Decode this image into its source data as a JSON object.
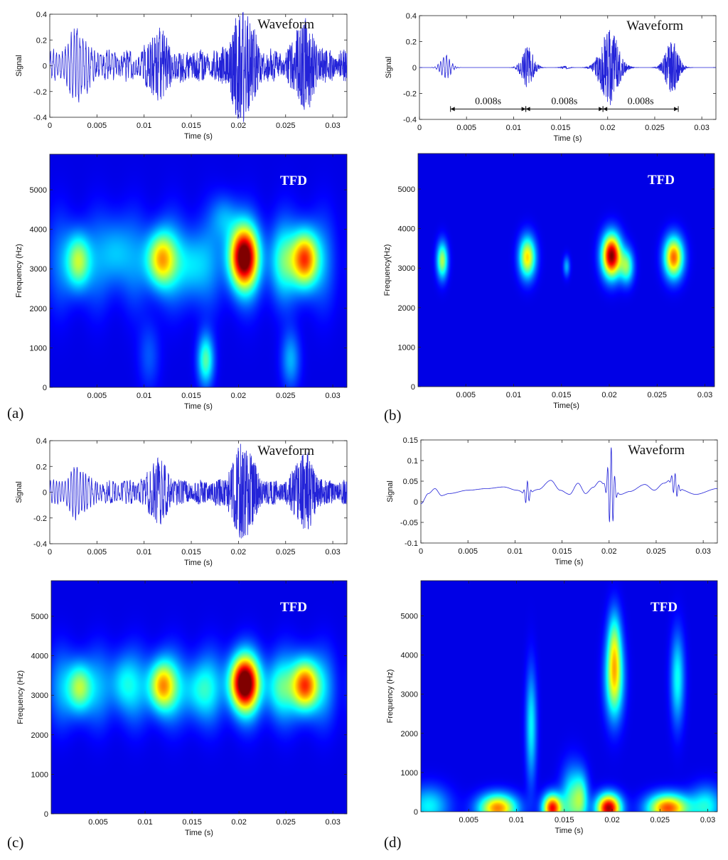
{
  "chart_data": [
    {
      "id": "a-waveform",
      "type": "line",
      "panel": "a",
      "title": "Waveform",
      "xlabel": "Time (s)",
      "ylabel": "Signal",
      "xlim": [
        0,
        0.0315
      ],
      "ylim": [
        -0.4,
        0.4
      ],
      "xticks": [
        0,
        0.005,
        0.01,
        0.015,
        0.02,
        0.025,
        0.03
      ],
      "xtick_labels": [
        "0",
        "0.005",
        "0.01",
        "0.015",
        "0.02",
        "0.025",
        "0.03"
      ],
      "yticks": [
        -0.4,
        -0.2,
        0,
        0.2,
        0.4
      ],
      "ytick_labels": [
        "-0.4",
        "-0.2",
        "0",
        "0.2",
        "0.4"
      ],
      "color": "#2323d8",
      "signal": {
        "kind": "noisy",
        "carrier_hz": 3200,
        "base": 0.08,
        "noise": 0.05,
        "bursts": [
          {
            "t": 0.003,
            "a": 0.18,
            "w": 0.0012
          },
          {
            "t": 0.0115,
            "a": 0.17,
            "w": 0.0012
          },
          {
            "t": 0.0205,
            "a": 0.32,
            "w": 0.0014
          },
          {
            "t": 0.027,
            "a": 0.26,
            "w": 0.0012
          }
        ]
      }
    },
    {
      "id": "a-tfd",
      "type": "heatmap",
      "panel": "a",
      "title": "TFD",
      "xlabel": "Time (s)",
      "ylabel": "Frequency (Hz)",
      "xlim": [
        0,
        0.0315
      ],
      "ylim": [
        0,
        5900
      ],
      "xticks": [
        0.005,
        0.01,
        0.015,
        0.02,
        0.025,
        0.03
      ],
      "xtick_labels": [
        "0.005",
        "0.01",
        "0.015",
        "0.02",
        "0.025",
        "0.03"
      ],
      "yticks": [
        0,
        1000,
        2000,
        3000,
        4000,
        5000
      ],
      "ytick_labels": [
        "0",
        "1000",
        "2000",
        "3000",
        "4000",
        "5000"
      ],
      "colormap": "jet",
      "blobs": [
        {
          "t": 0.003,
          "f": 3200,
          "st": 0.0009,
          "sf": 500,
          "v": 0.5
        },
        {
          "t": 0.0117,
          "f": 3250,
          "st": 0.0011,
          "sf": 500,
          "v": 0.62
        },
        {
          "t": 0.0205,
          "f": 3300,
          "st": 0.0011,
          "sf": 550,
          "v": 1.0
        },
        {
          "t": 0.027,
          "f": 3250,
          "st": 0.001,
          "sf": 500,
          "v": 0.78
        },
        {
          "t": 0.0165,
          "f": 700,
          "st": 0.0006,
          "sf": 450,
          "v": 0.4
        },
        {
          "t": 0.007,
          "f": 3400,
          "st": 0.0011,
          "sf": 600,
          "v": 0.22
        },
        {
          "t": 0.015,
          "f": 3100,
          "st": 0.0012,
          "sf": 600,
          "v": 0.25
        },
        {
          "t": 0.0245,
          "f": 3200,
          "st": 0.001,
          "sf": 600,
          "v": 0.24
        },
        {
          "t": 0.0185,
          "f": 4300,
          "st": 0.001,
          "sf": 400,
          "v": 0.18
        },
        {
          "t": 0.0255,
          "f": 700,
          "st": 0.0007,
          "sf": 500,
          "v": 0.22
        },
        {
          "t": 0.0105,
          "f": 800,
          "st": 0.0008,
          "sf": 600,
          "v": 0.12
        }
      ],
      "background": 0.1,
      "band": {
        "f": 3200,
        "sf": 900,
        "v": 0.15
      }
    },
    {
      "id": "b-waveform",
      "type": "line",
      "panel": "b",
      "title": "Waveform",
      "xlabel": "Time (s)",
      "ylabel": "Signal",
      "xlim": [
        0,
        0.0315
      ],
      "ylim": [
        -0.4,
        0.4
      ],
      "xticks": [
        0,
        0.005,
        0.01,
        0.015,
        0.02,
        0.025,
        0.03
      ],
      "xtick_labels": [
        "0",
        "0.005",
        "0.01",
        "0.015",
        "0.02",
        "0.025",
        "0.03"
      ],
      "yticks": [
        -0.4,
        -0.2,
        0,
        0.2,
        0.4
      ],
      "ytick_labels": [
        "-0.4",
        "-0.2",
        "0",
        "0.2",
        "0.4"
      ],
      "color": "#2323d8",
      "signal": {
        "kind": "clean",
        "carrier_hz": 3200,
        "base": 0,
        "noise": 0,
        "bursts": [
          {
            "t": 0.0028,
            "a": 0.09,
            "w": 0.0007
          },
          {
            "t": 0.0115,
            "a": 0.15,
            "w": 0.0008
          },
          {
            "t": 0.0155,
            "a": 0.01,
            "w": 0.0006
          },
          {
            "t": 0.0202,
            "a": 0.28,
            "w": 0.0012
          },
          {
            "t": 0.0268,
            "a": 0.19,
            "w": 0.0009
          }
        ]
      },
      "annotations": [
        {
          "from": 0.0033,
          "to": 0.0113,
          "y": -0.32,
          "label": "0.008s"
        },
        {
          "from": 0.0113,
          "to": 0.0195,
          "y": -0.32,
          "label": "0.008s"
        },
        {
          "from": 0.0195,
          "to": 0.0275,
          "y": -0.32,
          "label": "0.008s"
        }
      ]
    },
    {
      "id": "b-tfd",
      "type": "heatmap",
      "panel": "b",
      "title": "TFD",
      "xlabel": "Time(s)",
      "ylabel": "Frequency(Hz)",
      "xlim": [
        0,
        0.031
      ],
      "ylim": [
        0,
        5900
      ],
      "xticks": [
        0.005,
        0.01,
        0.015,
        0.02,
        0.025,
        0.03
      ],
      "xtick_labels": [
        "0.005",
        "0.01",
        "0.015",
        "0.02",
        "0.025",
        "0.03"
      ],
      "yticks": [
        0,
        1000,
        2000,
        3000,
        4000,
        5000
      ],
      "ytick_labels": [
        "0",
        "1000",
        "2000",
        "3000",
        "4000",
        "5000"
      ],
      "colormap": "jet",
      "blobs": [
        {
          "t": 0.0025,
          "f": 3200,
          "st": 0.0004,
          "sf": 320,
          "v": 0.5
        },
        {
          "t": 0.0114,
          "f": 3280,
          "st": 0.0006,
          "sf": 360,
          "v": 0.62
        },
        {
          "t": 0.0155,
          "f": 3050,
          "st": 0.00025,
          "sf": 180,
          "v": 0.22
        },
        {
          "t": 0.0202,
          "f": 3320,
          "st": 0.0007,
          "sf": 380,
          "v": 1.0
        },
        {
          "t": 0.0218,
          "f": 3050,
          "st": 0.0005,
          "sf": 300,
          "v": 0.42
        },
        {
          "t": 0.0267,
          "f": 3280,
          "st": 0.0007,
          "sf": 360,
          "v": 0.75
        }
      ],
      "background": 0.1,
      "band": null
    },
    {
      "id": "c-waveform",
      "type": "line",
      "panel": "c",
      "title": "Waveform",
      "xlabel": "Time (s)",
      "ylabel": "Signal",
      "xlim": [
        0,
        0.0315
      ],
      "ylim": [
        -0.4,
        0.4
      ],
      "xticks": [
        0,
        0.005,
        0.01,
        0.015,
        0.02,
        0.025,
        0.03
      ],
      "xtick_labels": [
        "0",
        "0.005",
        "0.01",
        "0.015",
        "0.02",
        "0.025",
        "0.03"
      ],
      "yticks": [
        -0.4,
        -0.2,
        0,
        0.2,
        0.4
      ],
      "ytick_labels": [
        "-0.4",
        "-0.2",
        "0",
        "0.2",
        "0.4"
      ],
      "color": "#2323d8",
      "signal": {
        "kind": "noisy",
        "carrier_hz": 3200,
        "base": 0.07,
        "noise": 0.01,
        "bursts": [
          {
            "t": 0.003,
            "a": 0.12,
            "w": 0.0011
          },
          {
            "t": 0.0115,
            "a": 0.16,
            "w": 0.0012
          },
          {
            "t": 0.0205,
            "a": 0.28,
            "w": 0.0014
          },
          {
            "t": 0.027,
            "a": 0.22,
            "w": 0.0012
          }
        ]
      }
    },
    {
      "id": "c-tfd",
      "type": "heatmap",
      "panel": "c",
      "title": "TFD",
      "xlabel": "Time (s)",
      "ylabel": "Frequency (Hz)",
      "xlim": [
        0,
        0.0315
      ],
      "ylim": [
        0,
        5900
      ],
      "xticks": [
        0.005,
        0.01,
        0.015,
        0.02,
        0.025,
        0.03
      ],
      "xtick_labels": [
        "0.005",
        "0.01",
        "0.015",
        "0.02",
        "0.025",
        "0.03"
      ],
      "yticks": [
        0,
        1000,
        2000,
        3000,
        4000,
        5000
      ],
      "ytick_labels": [
        "0",
        "1000",
        "2000",
        "3000",
        "4000",
        "5000"
      ],
      "colormap": "jet",
      "blobs": [
        {
          "t": 0.003,
          "f": 3200,
          "st": 0.0009,
          "sf": 450,
          "v": 0.48
        },
        {
          "t": 0.0117,
          "f": 3250,
          "st": 0.001,
          "sf": 450,
          "v": 0.62
        },
        {
          "t": 0.0205,
          "f": 3320,
          "st": 0.0011,
          "sf": 480,
          "v": 1.0
        },
        {
          "t": 0.027,
          "f": 3260,
          "st": 0.001,
          "sf": 450,
          "v": 0.78
        },
        {
          "t": 0.0075,
          "f": 3300,
          "st": 0.001,
          "sf": 500,
          "v": 0.24
        },
        {
          "t": 0.0155,
          "f": 3150,
          "st": 0.0012,
          "sf": 500,
          "v": 0.26
        },
        {
          "t": 0.024,
          "f": 3200,
          "st": 0.001,
          "sf": 500,
          "v": 0.24
        }
      ],
      "background": 0.1,
      "band": {
        "f": 3200,
        "sf": 700,
        "v": 0.2
      }
    },
    {
      "id": "d-waveform",
      "type": "line",
      "panel": "d",
      "title": "Waveform",
      "xlabel": "Time (s)",
      "ylabel": "Signal",
      "xlim": [
        0,
        0.0315
      ],
      "ylim": [
        -0.1,
        0.15
      ],
      "xticks": [
        0,
        0.005,
        0.01,
        0.015,
        0.02,
        0.025,
        0.03
      ],
      "xtick_labels": [
        "0",
        "0.005",
        "0.01",
        "0.015",
        "0.02",
        "0.025",
        "0.03"
      ],
      "yticks": [
        -0.1,
        -0.05,
        0,
        0.05,
        0.1,
        0.15
      ],
      "ytick_labels": [
        "-0.1",
        "-0.05",
        "0",
        "0.05",
        "0.1",
        "0.15"
      ],
      "color": "#2323d8",
      "signal": {
        "kind": "lowfreq",
        "points": [
          [
            0,
            -0.005
          ],
          [
            0.0008,
            0.02
          ],
          [
            0.0015,
            0.032
          ],
          [
            0.0022,
            0.015
          ],
          [
            0.003,
            0.02
          ],
          [
            0.005,
            0.028
          ],
          [
            0.007,
            0.032
          ],
          [
            0.0088,
            0.036
          ],
          [
            0.0102,
            0.028
          ],
          [
            0.0112,
            0.02
          ],
          [
            0.0125,
            0.03
          ],
          [
            0.0138,
            0.052
          ],
          [
            0.0148,
            0.028
          ],
          [
            0.0158,
            0.018
          ],
          [
            0.0167,
            0.045
          ],
          [
            0.0175,
            0.02
          ],
          [
            0.0183,
            0.035
          ],
          [
            0.019,
            0.05
          ],
          [
            0.0197,
            0.038
          ],
          [
            0.0212,
            0.018
          ],
          [
            0.0222,
            0.025
          ],
          [
            0.0238,
            0.042
          ],
          [
            0.0248,
            0.028
          ],
          [
            0.0258,
            0.045
          ],
          [
            0.0265,
            0.052
          ],
          [
            0.0275,
            0.03
          ],
          [
            0.0292,
            0.018
          ],
          [
            0.0315,
            0.032
          ]
        ],
        "spikes": [
          {
            "t": 0.0113,
            "a": 0.03,
            "w": 0.0003
          },
          {
            "t": 0.0202,
            "a": 0.1,
            "w": 0.0004
          },
          {
            "t": 0.027,
            "a": 0.028,
            "w": 0.0004
          }
        ]
      }
    },
    {
      "id": "d-tfd",
      "type": "heatmap",
      "panel": "d",
      "title": "TFD",
      "xlabel": "Time (s)",
      "ylabel": "Frequency (Hz)",
      "xlim": [
        0,
        0.031
      ],
      "ylim": [
        0,
        5900
      ],
      "xticks": [
        0.005,
        0.01,
        0.015,
        0.02,
        0.025,
        0.03
      ],
      "xtick_labels": [
        "0.005",
        "0.01",
        "0.015",
        "0.02",
        "0.025",
        "0.03"
      ],
      "yticks": [
        0,
        1000,
        2000,
        3000,
        4000,
        5000
      ],
      "ytick_labels": [
        "0",
        "1000",
        "2000",
        "3000",
        "4000",
        "5000"
      ],
      "colormap": "jet",
      "blobs": [
        {
          "t": 0.0202,
          "f": 3400,
          "st": 0.00065,
          "sf": 700,
          "v": 0.58
        },
        {
          "t": 0.0202,
          "f": 4400,
          "st": 0.0005,
          "sf": 600,
          "v": 0.3
        },
        {
          "t": 0.0268,
          "f": 3400,
          "st": 0.0005,
          "sf": 800,
          "v": 0.32
        },
        {
          "t": 0.0115,
          "f": 2200,
          "st": 0.0004,
          "sf": 1000,
          "v": 0.3
        },
        {
          "t": 0.0008,
          "f": 150,
          "st": 0.0015,
          "sf": 350,
          "v": 0.3
        },
        {
          "t": 0.008,
          "f": 100,
          "st": 0.0014,
          "sf": 250,
          "v": 0.72
        },
        {
          "t": 0.0137,
          "f": 100,
          "st": 0.0007,
          "sf": 250,
          "v": 0.86
        },
        {
          "t": 0.0158,
          "f": 250,
          "st": 0.0008,
          "sf": 600,
          "v": 0.4
        },
        {
          "t": 0.0168,
          "f": 350,
          "st": 0.0005,
          "sf": 450,
          "v": 0.28
        },
        {
          "t": 0.0196,
          "f": 100,
          "st": 0.0009,
          "sf": 250,
          "v": 0.96
        },
        {
          "t": 0.0258,
          "f": 100,
          "st": 0.0015,
          "sf": 250,
          "v": 0.78
        },
        {
          "t": 0.0298,
          "f": 150,
          "st": 0.0012,
          "sf": 350,
          "v": 0.32
        }
      ],
      "background": 0.1,
      "band": null
    }
  ],
  "panel_labels": {
    "a": "(a)",
    "b": "(b)",
    "c": "(c)",
    "d": "(d)"
  }
}
